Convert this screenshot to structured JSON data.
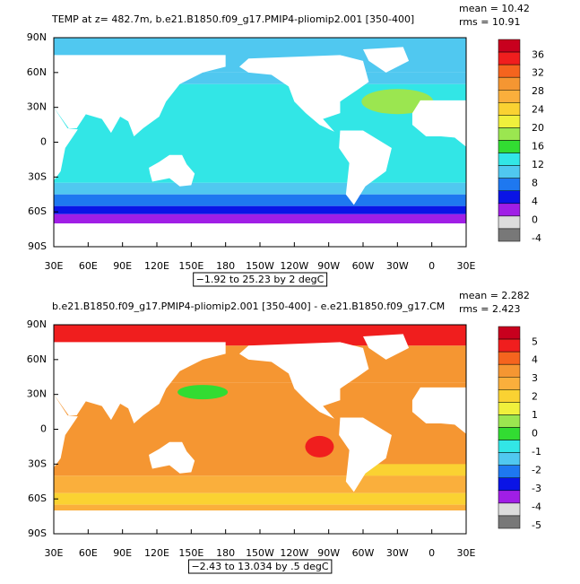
{
  "panels": [
    {
      "title": "TEMP at z= 482.7m, b.e21.B1850.f09_g17.PMIP4-pliomip2.001 [350-400]",
      "mean": "mean = 10.42",
      "rms": "rms = 10.91",
      "y_labels": [
        "90N",
        "60N",
        "30N",
        "0",
        "30S",
        "60S",
        "90S"
      ],
      "x_labels": [
        "30E",
        "60E",
        "90E",
        "120E",
        "150E",
        "180",
        "150W",
        "120W",
        "90W",
        "60W",
        "30W",
        "0",
        "30E"
      ],
      "colorbar_labels": [
        36,
        32,
        28,
        24,
        20,
        16,
        12,
        8,
        4,
        0,
        -4
      ],
      "colorbar_colors": [
        "#c8001e",
        "#f01e1e",
        "#f5641e",
        "#f59632",
        "#faaf3c",
        "#fad232",
        "#f0f03c",
        "#9be650",
        "#32dc32",
        "#32e6e6",
        "#50c8f0",
        "#1e78f0",
        "#0a14e6",
        "#a01ee6",
        "#dcdcdc",
        "#787878"
      ],
      "range_note": "−1.92 to 25.23 by 2 degC"
    },
    {
      "title": "b.e21.B1850.f09_g17.PMIP4-pliomip2.001 [350-400] - e.e21.B1850.f09_g17.CM",
      "mean": "mean = 2.282",
      "rms": "rms = 2.423",
      "y_labels": [
        "90N",
        "60N",
        "30N",
        "0",
        "30S",
        "60S",
        "90S"
      ],
      "x_labels": [
        "30E",
        "60E",
        "90E",
        "120E",
        "150E",
        "180",
        "150W",
        "120W",
        "90W",
        "60W",
        "30W",
        "0",
        "30E"
      ],
      "colorbar_labels": [
        5,
        4,
        3,
        2,
        1,
        0,
        -1,
        -2,
        -3,
        -4,
        -5
      ],
      "colorbar_colors": [
        "#c8001e",
        "#f01e1e",
        "#f5641e",
        "#f59632",
        "#faaf3c",
        "#fad232",
        "#f0f03c",
        "#9be650",
        "#32dc32",
        "#32e6e6",
        "#50c8f0",
        "#1e78f0",
        "#0a14e6",
        "#a01ee6",
        "#dcdcdc",
        "#787878"
      ],
      "range_note": "−2.43 to 13.034 by .5 degC"
    }
  ]
}
